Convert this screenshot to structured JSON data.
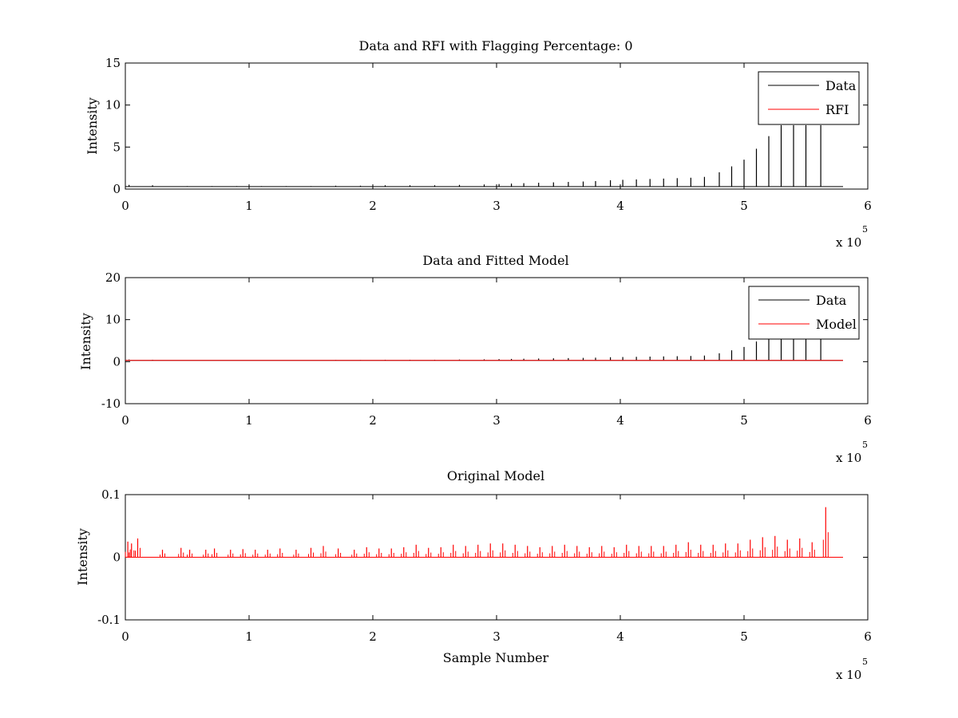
{
  "chart_data": [
    {
      "type": "line",
      "title": "Data and RFI with Flagging Percentage: 0",
      "xlabel": "",
      "ylabel": "Intensity",
      "xlim": [
        0,
        6
      ],
      "ylim": [
        0,
        15
      ],
      "x_ticks": [
        0,
        1,
        2,
        3,
        4,
        5,
        6
      ],
      "y_ticks": [
        0,
        5,
        10,
        15
      ],
      "x_tick_labels": [
        "0",
        "1",
        "2",
        "3",
        "4",
        "5",
        "6"
      ],
      "y_tick_labels": [
        "0",
        "5",
        "10",
        "15"
      ],
      "x_exponent_label": "x 10",
      "x_exponent_power": "5",
      "x_data_end": 5.8,
      "grid": false,
      "legend": {
        "position": "top-right",
        "entries": [
          "Data",
          "RFI"
        ]
      },
      "series": [
        {
          "name": "Data",
          "color": "#000000",
          "baseline": 0.3,
          "spikes": [
            [
              0.03,
              0.5
            ],
            [
              0.22,
              0.45
            ],
            [
              0.5,
              0.35
            ],
            [
              0.7,
              0.35
            ],
            [
              0.9,
              0.35
            ],
            [
              1.1,
              0.35
            ],
            [
              1.3,
              0.35
            ],
            [
              1.5,
              0.35
            ],
            [
              1.7,
              0.4
            ],
            [
              1.9,
              0.4
            ],
            [
              2.1,
              0.45
            ],
            [
              2.3,
              0.45
            ],
            [
              2.5,
              0.45
            ],
            [
              2.7,
              0.5
            ],
            [
              2.9,
              0.55
            ],
            [
              3.02,
              0.6
            ],
            [
              3.12,
              0.65
            ],
            [
              3.22,
              0.7
            ],
            [
              3.34,
              0.75
            ],
            [
              3.46,
              0.8
            ],
            [
              3.58,
              0.85
            ],
            [
              3.7,
              0.9
            ],
            [
              3.8,
              0.95
            ],
            [
              3.92,
              1.05
            ],
            [
              4.02,
              1.1
            ],
            [
              4.13,
              1.15
            ],
            [
              4.24,
              1.2
            ],
            [
              4.35,
              1.25
            ],
            [
              4.46,
              1.3
            ],
            [
              4.57,
              1.35
            ],
            [
              4.68,
              1.45
            ],
            [
              4.8,
              2.0
            ],
            [
              4.9,
              2.7
            ],
            [
              5.0,
              3.5
            ],
            [
              5.1,
              4.8
            ],
            [
              5.2,
              6.3
            ],
            [
              5.3,
              7.6
            ],
            [
              5.4,
              7.6
            ],
            [
              5.5,
              7.6
            ],
            [
              5.62,
              7.6
            ]
          ]
        },
        {
          "name": "RFI",
          "color": "#ff0000",
          "values": []
        }
      ]
    },
    {
      "type": "line",
      "title": "Data and Fitted Model",
      "xlabel": "",
      "ylabel": "Intensity",
      "xlim": [
        0,
        6
      ],
      "ylim": [
        -10,
        20
      ],
      "x_ticks": [
        0,
        1,
        2,
        3,
        4,
        5,
        6
      ],
      "y_ticks": [
        -10,
        0,
        10,
        20
      ],
      "x_tick_labels": [
        "0",
        "1",
        "2",
        "3",
        "4",
        "5",
        "6"
      ],
      "y_tick_labels": [
        "-10",
        "0",
        "10",
        "20"
      ],
      "x_exponent_label": "x 10",
      "x_exponent_power": "5",
      "x_data_end": 5.8,
      "grid": false,
      "legend": {
        "position": "top-right",
        "entries": [
          "Data",
          "Model"
        ]
      },
      "series": [
        {
          "name": "Data",
          "color": "#000000",
          "baseline": 0.3,
          "spikes": [
            [
              0.03,
              0.5
            ],
            [
              0.22,
              0.45
            ],
            [
              0.5,
              0.35
            ],
            [
              0.7,
              0.35
            ],
            [
              0.9,
              0.35
            ],
            [
              1.1,
              0.35
            ],
            [
              1.3,
              0.35
            ],
            [
              1.5,
              0.35
            ],
            [
              1.7,
              0.4
            ],
            [
              1.9,
              0.4
            ],
            [
              2.1,
              0.45
            ],
            [
              2.3,
              0.45
            ],
            [
              2.5,
              0.45
            ],
            [
              2.7,
              0.5
            ],
            [
              2.9,
              0.55
            ],
            [
              3.02,
              0.6
            ],
            [
              3.12,
              0.65
            ],
            [
              3.22,
              0.7
            ],
            [
              3.34,
              0.75
            ],
            [
              3.46,
              0.8
            ],
            [
              3.58,
              0.85
            ],
            [
              3.7,
              0.9
            ],
            [
              3.8,
              0.95
            ],
            [
              3.92,
              1.05
            ],
            [
              4.02,
              1.1
            ],
            [
              4.13,
              1.15
            ],
            [
              4.24,
              1.2
            ],
            [
              4.35,
              1.25
            ],
            [
              4.46,
              1.3
            ],
            [
              4.57,
              1.35
            ],
            [
              4.68,
              1.45
            ],
            [
              4.8,
              2.0
            ],
            [
              4.9,
              2.7
            ],
            [
              5.0,
              3.5
            ],
            [
              5.1,
              4.8
            ],
            [
              5.2,
              6.3
            ],
            [
              5.3,
              7.6
            ],
            [
              5.4,
              7.6
            ],
            [
              5.5,
              7.6
            ],
            [
              5.62,
              7.6
            ]
          ]
        },
        {
          "name": "Model",
          "color": "#ff0000",
          "baseline": 0.3
        }
      ]
    },
    {
      "type": "line",
      "title": "Original Model",
      "xlabel": "Sample Number",
      "ylabel": "Intensity",
      "xlim": [
        0,
        6
      ],
      "ylim": [
        -0.1,
        0.1
      ],
      "x_ticks": [
        0,
        1,
        2,
        3,
        4,
        5,
        6
      ],
      "y_ticks": [
        -0.1,
        0,
        0.1
      ],
      "x_tick_labels": [
        "0",
        "1",
        "2",
        "3",
        "4",
        "5",
        "6"
      ],
      "y_tick_labels": [
        "-0.1",
        "0",
        "0.1"
      ],
      "x_exponent_label": "x 10",
      "x_exponent_power": "5",
      "x_data_end": 5.8,
      "grid": false,
      "legend": null,
      "series": [
        {
          "name": "",
          "color": "#ff0000",
          "baseline": 0.0,
          "spikes": [
            [
              0.02,
              0.025
            ],
            [
              0.05,
              0.022
            ],
            [
              0.1,
              0.03
            ],
            [
              0.3,
              0.012
            ],
            [
              0.45,
              0.015
            ],
            [
              0.52,
              0.012
            ],
            [
              0.65,
              0.012
            ],
            [
              0.72,
              0.014
            ],
            [
              0.85,
              0.012
            ],
            [
              0.95,
              0.013
            ],
            [
              1.05,
              0.012
            ],
            [
              1.15,
              0.012
            ],
            [
              1.25,
              0.014
            ],
            [
              1.38,
              0.012
            ],
            [
              1.5,
              0.015
            ],
            [
              1.6,
              0.018
            ],
            [
              1.72,
              0.014
            ],
            [
              1.85,
              0.012
            ],
            [
              1.95,
              0.016
            ],
            [
              2.05,
              0.014
            ],
            [
              2.15,
              0.014
            ],
            [
              2.25,
              0.016
            ],
            [
              2.35,
              0.02
            ],
            [
              2.45,
              0.015
            ],
            [
              2.55,
              0.016
            ],
            [
              2.65,
              0.02
            ],
            [
              2.75,
              0.018
            ],
            [
              2.85,
              0.02
            ],
            [
              2.95,
              0.022
            ],
            [
              3.05,
              0.022
            ],
            [
              3.15,
              0.02
            ],
            [
              3.25,
              0.018
            ],
            [
              3.35,
              0.016
            ],
            [
              3.45,
              0.018
            ],
            [
              3.55,
              0.02
            ],
            [
              3.65,
              0.018
            ],
            [
              3.75,
              0.016
            ],
            [
              3.85,
              0.018
            ],
            [
              3.95,
              0.016
            ],
            [
              4.05,
              0.02
            ],
            [
              4.15,
              0.018
            ],
            [
              4.25,
              0.018
            ],
            [
              4.35,
              0.018
            ],
            [
              4.45,
              0.02
            ],
            [
              4.55,
              0.024
            ],
            [
              4.65,
              0.02
            ],
            [
              4.75,
              0.02
            ],
            [
              4.85,
              0.022
            ],
            [
              4.95,
              0.022
            ],
            [
              5.05,
              0.028
            ],
            [
              5.15,
              0.032
            ],
            [
              5.25,
              0.034
            ],
            [
              5.35,
              0.028
            ],
            [
              5.45,
              0.03
            ],
            [
              5.55,
              0.024
            ],
            [
              5.66,
              0.08
            ]
          ]
        }
      ]
    }
  ]
}
